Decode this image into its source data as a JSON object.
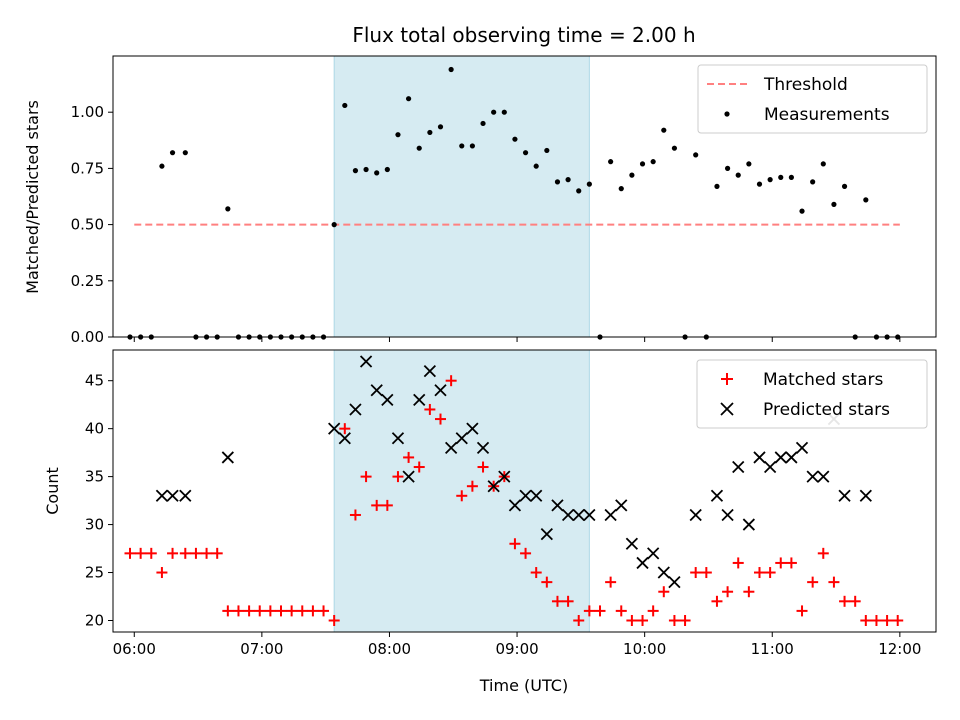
{
  "chart_data": [
    {
      "type": "scatter",
      "title": "Flux total observing time = 2.00 h",
      "xlabel": "",
      "ylabel": "Matched/Predicted stars",
      "x_unit": "time_utc",
      "xlim": [
        "05:50",
        "12:17"
      ],
      "ylim": [
        0,
        1.25
      ],
      "x_ticks": [
        "06:00",
        "07:00",
        "08:00",
        "09:00",
        "10:00",
        "11:00",
        "12:00"
      ],
      "y_ticks": [
        0.0,
        0.25,
        0.5,
        0.75,
        1.0
      ],
      "y_tick_labels": [
        "0.00",
        "0.25",
        "0.50",
        "0.75",
        "1.00"
      ],
      "highlight_span": [
        "07:34",
        "09:34"
      ],
      "legend_placement": "upper right",
      "threshold": {
        "name": "Threshold",
        "value": 0.5,
        "x_range": [
          "06:00",
          "12:00"
        ],
        "color": "#ff8080",
        "style": "dashed"
      },
      "series": [
        {
          "name": "Measurements",
          "color": "#000000",
          "marker": "dot",
          "points": [
            [
              "05:58",
              0
            ],
            [
              "06:03",
              0
            ],
            [
              "06:08",
              0
            ],
            [
              "06:13",
              0.76
            ],
            [
              "06:18",
              0.82
            ],
            [
              "06:24",
              0.82
            ],
            [
              "06:29",
              0
            ],
            [
              "06:34",
              0
            ],
            [
              "06:39",
              0
            ],
            [
              "06:44",
              0.57
            ],
            [
              "06:49",
              0
            ],
            [
              "06:54",
              0
            ],
            [
              "06:59",
              0
            ],
            [
              "07:04",
              0
            ],
            [
              "07:09",
              0
            ],
            [
              "07:14",
              0
            ],
            [
              "07:19",
              0
            ],
            [
              "07:24",
              0
            ],
            [
              "07:29",
              0
            ],
            [
              "07:34",
              0.5
            ],
            [
              "07:39",
              1.03
            ],
            [
              "07:44",
              0.74
            ],
            [
              "07:49",
              0.745
            ],
            [
              "07:54",
              0.73
            ],
            [
              "07:59",
              0.745
            ],
            [
              "08:04",
              0.9
            ],
            [
              "08:09",
              1.06
            ],
            [
              "08:14",
              0.84
            ],
            [
              "08:19",
              0.91
            ],
            [
              "08:24",
              0.935
            ],
            [
              "08:29",
              1.19
            ],
            [
              "08:34",
              0.85
            ],
            [
              "08:39",
              0.85
            ],
            [
              "08:44",
              0.95
            ],
            [
              "08:49",
              1.0
            ],
            [
              "08:54",
              1.0
            ],
            [
              "08:59",
              0.88
            ],
            [
              "09:04",
              0.82
            ],
            [
              "09:09",
              0.76
            ],
            [
              "09:14",
              0.83
            ],
            [
              "09:19",
              0.69
            ],
            [
              "09:24",
              0.7
            ],
            [
              "09:29",
              0.65
            ],
            [
              "09:34",
              0.68
            ],
            [
              "09:39",
              0
            ],
            [
              "09:44",
              0.78
            ],
            [
              "09:49",
              0.66
            ],
            [
              "09:54",
              0.72
            ],
            [
              "09:59",
              0.77
            ],
            [
              "10:04",
              0.78
            ],
            [
              "10:09",
              0.92
            ],
            [
              "10:14",
              0.84
            ],
            [
              "10:19",
              0
            ],
            [
              "10:24",
              0.81
            ],
            [
              "10:29",
              0
            ],
            [
              "10:34",
              0.67
            ],
            [
              "10:39",
              0.75
            ],
            [
              "10:44",
              0.72
            ],
            [
              "10:49",
              0.77
            ],
            [
              "10:54",
              0.68
            ],
            [
              "10:59",
              0.7
            ],
            [
              "11:04",
              0.71
            ],
            [
              "11:09",
              0.71
            ],
            [
              "11:14",
              0.56
            ],
            [
              "11:19",
              0.69
            ],
            [
              "11:24",
              0.77
            ],
            [
              "11:29",
              0.59
            ],
            [
              "11:34",
              0.67
            ],
            [
              "11:39",
              0
            ],
            [
              "11:44",
              0.61
            ],
            [
              "11:49",
              0
            ],
            [
              "11:54",
              0
            ],
            [
              "11:59",
              0
            ]
          ]
        }
      ]
    },
    {
      "type": "scatter",
      "title": "",
      "xlabel": "Time (UTC)",
      "ylabel": "Count",
      "x_unit": "time_utc",
      "xlim": [
        "05:50",
        "12:17"
      ],
      "ylim": [
        18.8,
        48.2
      ],
      "x_ticks": [
        "06:00",
        "07:00",
        "08:00",
        "09:00",
        "10:00",
        "11:00",
        "12:00"
      ],
      "y_ticks": [
        20,
        25,
        30,
        35,
        40,
        45
      ],
      "y_tick_labels": [
        "20",
        "25",
        "30",
        "35",
        "40",
        "45"
      ],
      "highlight_span": [
        "07:34",
        "09:34"
      ],
      "legend_placement": "upper right",
      "series": [
        {
          "name": "Matched stars",
          "color": "#ff0000",
          "marker": "plus",
          "points": [
            [
              "05:58",
              27
            ],
            [
              "06:03",
              27
            ],
            [
              "06:08",
              27
            ],
            [
              "06:13",
              25
            ],
            [
              "06:18",
              27
            ],
            [
              "06:24",
              27
            ],
            [
              "06:29",
              27
            ],
            [
              "06:34",
              27
            ],
            [
              "06:39",
              27
            ],
            [
              "06:44",
              21
            ],
            [
              "06:49",
              21
            ],
            [
              "06:54",
              21
            ],
            [
              "06:59",
              21
            ],
            [
              "07:04",
              21
            ],
            [
              "07:09",
              21
            ],
            [
              "07:14",
              21
            ],
            [
              "07:19",
              21
            ],
            [
              "07:24",
              21
            ],
            [
              "07:29",
              21
            ],
            [
              "07:34",
              20
            ],
            [
              "07:39",
              40
            ],
            [
              "07:44",
              31
            ],
            [
              "07:49",
              35
            ],
            [
              "07:54",
              32
            ],
            [
              "07:59",
              32
            ],
            [
              "08:04",
              35
            ],
            [
              "08:09",
              37
            ],
            [
              "08:14",
              36
            ],
            [
              "08:19",
              42
            ],
            [
              "08:24",
              41
            ],
            [
              "08:29",
              45
            ],
            [
              "08:34",
              33
            ],
            [
              "08:39",
              34
            ],
            [
              "08:44",
              36
            ],
            [
              "08:49",
              34
            ],
            [
              "08:54",
              35
            ],
            [
              "08:59",
              28
            ],
            [
              "09:04",
              27
            ],
            [
              "09:09",
              25
            ],
            [
              "09:14",
              24
            ],
            [
              "09:19",
              22
            ],
            [
              "09:24",
              22
            ],
            [
              "09:29",
              20
            ],
            [
              "09:34",
              21
            ],
            [
              "09:39",
              21
            ],
            [
              "09:44",
              24
            ],
            [
              "09:49",
              21
            ],
            [
              "09:54",
              20
            ],
            [
              "09:59",
              20
            ],
            [
              "10:04",
              21
            ],
            [
              "10:09",
              23
            ],
            [
              "10:14",
              20
            ],
            [
              "10:19",
              20
            ],
            [
              "10:24",
              25
            ],
            [
              "10:29",
              25
            ],
            [
              "10:34",
              22
            ],
            [
              "10:39",
              23
            ],
            [
              "10:44",
              26
            ],
            [
              "10:49",
              23
            ],
            [
              "10:54",
              25
            ],
            [
              "10:59",
              25
            ],
            [
              "11:04",
              26
            ],
            [
              "11:09",
              26
            ],
            [
              "11:14",
              21
            ],
            [
              "11:19",
              24
            ],
            [
              "11:24",
              27
            ],
            [
              "11:29",
              24
            ],
            [
              "11:34",
              22
            ],
            [
              "11:39",
              22
            ],
            [
              "11:44",
              20
            ],
            [
              "11:49",
              20
            ],
            [
              "11:54",
              20
            ],
            [
              "11:59",
              20
            ]
          ]
        },
        {
          "name": "Predicted stars",
          "color": "#000000",
          "marker": "x",
          "points": [
            [
              "06:13",
              33
            ],
            [
              "06:18",
              33
            ],
            [
              "06:24",
              33
            ],
            [
              "06:44",
              37
            ],
            [
              "07:34",
              40
            ],
            [
              "07:39",
              39
            ],
            [
              "07:44",
              42
            ],
            [
              "07:49",
              47
            ],
            [
              "07:54",
              44
            ],
            [
              "07:59",
              43
            ],
            [
              "08:04",
              39
            ],
            [
              "08:09",
              35
            ],
            [
              "08:14",
              43
            ],
            [
              "08:19",
              46
            ],
            [
              "08:24",
              44
            ],
            [
              "08:29",
              38
            ],
            [
              "08:34",
              39
            ],
            [
              "08:39",
              40
            ],
            [
              "08:44",
              38
            ],
            [
              "08:49",
              34
            ],
            [
              "08:54",
              35
            ],
            [
              "08:59",
              32
            ],
            [
              "09:04",
              33
            ],
            [
              "09:09",
              33
            ],
            [
              "09:14",
              29
            ],
            [
              "09:19",
              32
            ],
            [
              "09:24",
              31
            ],
            [
              "09:29",
              31
            ],
            [
              "09:34",
              31
            ],
            [
              "09:44",
              31
            ],
            [
              "09:49",
              32
            ],
            [
              "09:54",
              28
            ],
            [
              "09:59",
              26
            ],
            [
              "10:04",
              27
            ],
            [
              "10:09",
              25
            ],
            [
              "10:14",
              24
            ],
            [
              "10:24",
              31
            ],
            [
              "10:34",
              33
            ],
            [
              "10:39",
              31
            ],
            [
              "10:44",
              36
            ],
            [
              "10:49",
              30
            ],
            [
              "10:54",
              37
            ],
            [
              "10:59",
              36
            ],
            [
              "11:04",
              37
            ],
            [
              "11:09",
              37
            ],
            [
              "11:14",
              38
            ],
            [
              "11:19",
              35
            ],
            [
              "11:24",
              35
            ],
            [
              "11:29",
              41
            ],
            [
              "11:34",
              33
            ],
            [
              "11:44",
              33
            ]
          ]
        }
      ]
    }
  ]
}
